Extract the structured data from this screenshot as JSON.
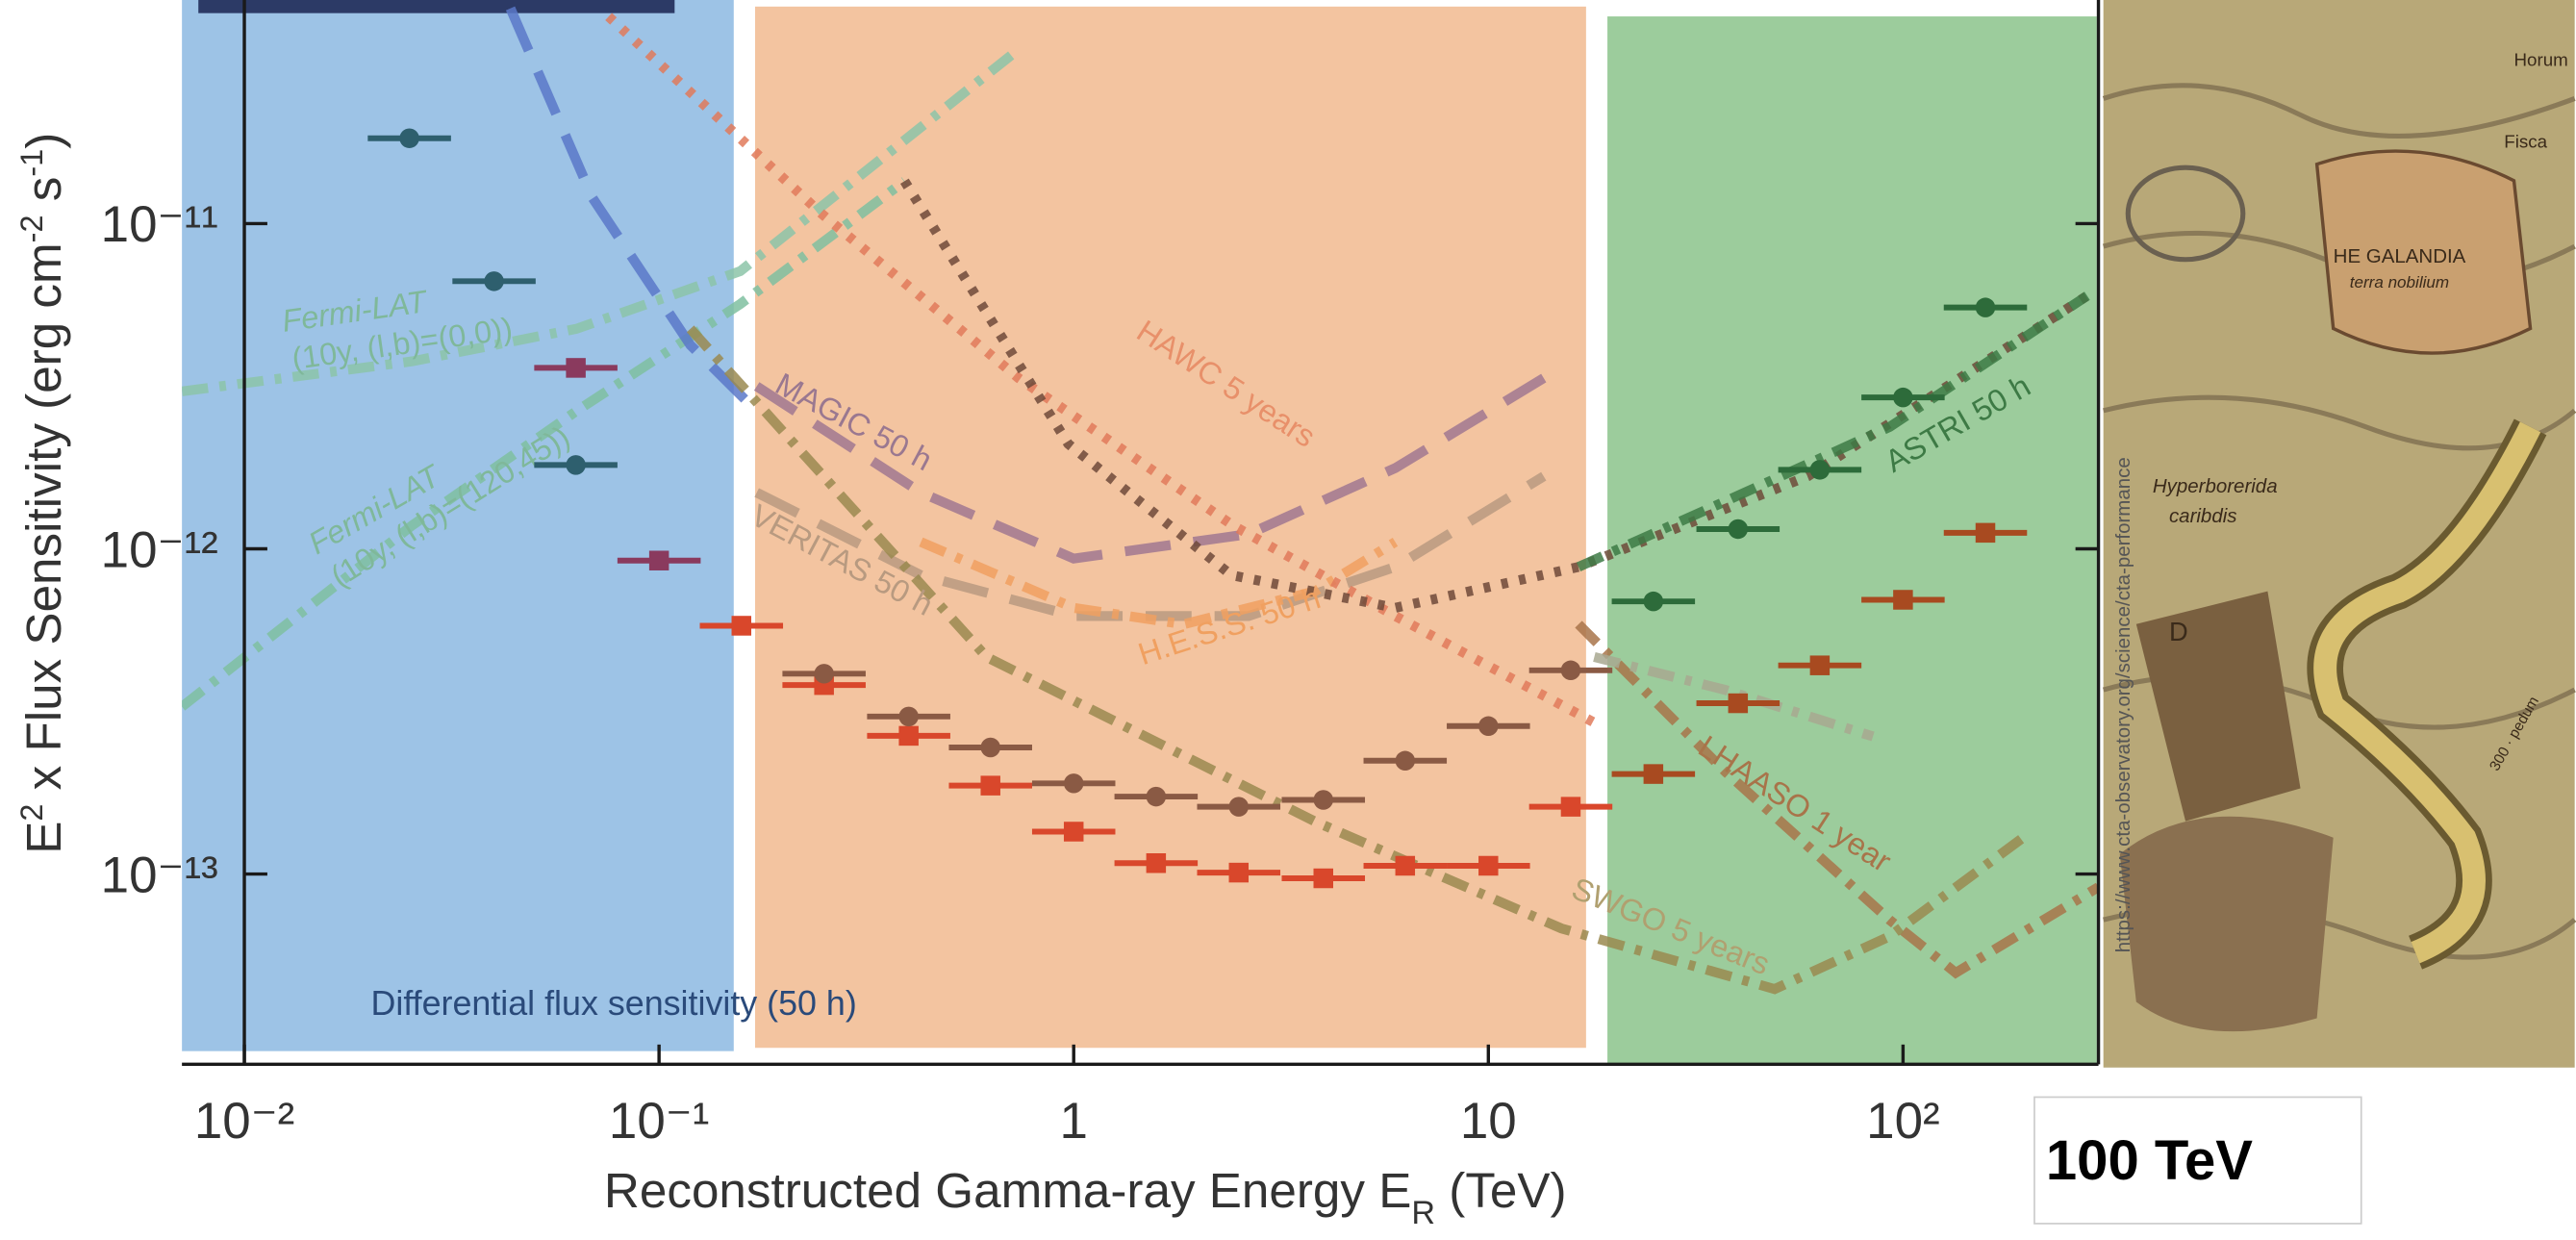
{
  "chart_data": {
    "type": "scatter",
    "log_x": true,
    "log_y": true,
    "xlim": [
      0.00707,
      296
    ],
    "ylim": [
      2.6e-14,
      4.87e-11
    ],
    "xticks": [
      {
        "value": 0.01,
        "label": "10⁻²"
      },
      {
        "value": 0.1,
        "label": "10⁻¹"
      },
      1,
      10,
      {
        "value": 100,
        "label": "10²"
      }
    ],
    "yticks": [
      {
        "value": 1e-13,
        "label": "10⁻¹³"
      },
      {
        "value": 1e-12,
        "label": "10⁻¹²"
      },
      {
        "value": 1e-11,
        "label": "10⁻¹¹"
      }
    ],
    "xlabel": [
      "Reconstructed Gamma-ray Energy E",
      "R",
      " (TeV)"
    ],
    "ylabel": [
      "E",
      "2",
      " x Flux Sensitivity (erg cm",
      "-2",
      " s",
      "-1",
      ")"
    ],
    "xerr_factor": 1.26,
    "series": [
      {
        "color": "#2e5f6e",
        "marker": "circle",
        "x": [
          0.025,
          0.04,
          0.063
        ],
        "values": [
          1.83e-11,
          6.65e-12,
          1.81e-12
        ]
      },
      {
        "color": "#8a3a5e",
        "marker": "square",
        "x": [
          0.063,
          0.1
        ],
        "values": [
          3.6e-12,
          9.2e-13
        ]
      },
      {
        "color": "#d9472b",
        "marker": "square",
        "x": [
          0.158,
          0.25,
          0.4,
          0.63,
          1,
          1.58,
          2.5,
          4,
          6.3,
          10,
          15.8
        ],
        "values": [
          5.8e-13,
          3.81e-13,
          2.66e-13,
          1.87e-13,
          1.35e-13,
          1.08e-13,
          1.01e-13,
          9.7e-14,
          1.06e-13,
          1.06e-13,
          1.61e-13
        ]
      },
      {
        "color": "#8a5a44",
        "marker": "circle",
        "x": [
          0.25,
          0.4,
          0.63,
          1,
          1.58,
          2.5,
          4,
          6.3,
          10,
          15.8
        ],
        "values": [
          4.13e-13,
          3.05e-13,
          2.45e-13,
          1.9e-13,
          1.73e-13,
          1.61e-13,
          1.69e-13,
          2.23e-13,
          2.85e-13,
          4.23e-13
        ]
      },
      {
        "color": "#a84a20",
        "marker": "square",
        "x": [
          25,
          40,
          63,
          100,
          158
        ],
        "values": [
          2.03e-13,
          3.35e-13,
          4.38e-13,
          6.97e-13,
          1.12e-12
        ]
      },
      {
        "color": "#2d6b3a",
        "marker": "circle",
        "x": [
          25,
          40,
          63,
          100,
          158
        ],
        "values": [
          6.89e-13,
          1.15e-12,
          1.75e-12,
          2.92e-12,
          5.52e-12
        ]
      }
    ],
    "curves": [
      {
        "color": "#8cc4a8",
        "style": "dashdot",
        "x": [
          0.00707,
          0.0254,
          0.0632,
          0.157,
          0.736
        ],
        "values": [
          3.05e-12,
          3.77e-12,
          4.75e-12,
          7.14e-12,
          3.43e-11
        ]
      },
      {
        "color": "#7fc0a0",
        "style": "dashdot",
        "x": [
          0.00707,
          0.0254,
          0.0632,
          0.157,
          0.391
        ],
        "values": [
          3.27e-13,
          1.18e-12,
          2.65e-12,
          5.66e-12,
          1.35e-11
        ]
      },
      {
        "color": "#5b78c8",
        "style": "dashed",
        "x": [
          0.0438,
          0.0691,
          0.119,
          0.172
        ],
        "values": [
          4.59e-11,
          1.2e-11,
          4.23e-12,
          2.65e-12
        ]
      },
      {
        "color": "#a07890",
        "style": "dashed",
        "x": [
          0.172,
          0.428,
          1,
          2.64,
          5.96,
          13.6
        ],
        "values": [
          3.16e-12,
          1.49e-12,
          9.33e-13,
          1.11e-12,
          1.77e-12,
          3.35e-12
        ]
      },
      {
        "color": "#b89a80",
        "style": "dashed",
        "x": [
          0.172,
          0.428,
          1,
          2.64,
          5.96,
          13.6
        ],
        "values": [
          1.49e-12,
          8.3e-13,
          6.21e-13,
          6.21e-13,
          8.79e-13,
          1.67e-12
        ]
      },
      {
        "color": "#f0a060",
        "style": "dashdot",
        "x": [
          0.428,
          1,
          1.84,
          3.82,
          5.96
        ],
        "values": [
          1.05e-12,
          6.58e-13,
          5.86e-13,
          7.4e-13,
          1.05e-12
        ]
      },
      {
        "color": "#e07a5a",
        "style": "dotted",
        "x": [
          0.0756,
          0.247,
          0.736,
          2.42,
          5.96,
          18
        ],
        "values": [
          4.33e-11,
          1.07e-11,
          3.35e-12,
          1.18e-12,
          6.21e-13,
          2.92e-13
        ]
      },
      {
        "color": "#6e4a3a",
        "style": "dotted",
        "x": [
          0.391,
          0.97,
          2.4,
          5.96,
          16.5,
          58.9,
          278
        ],
        "values": [
          1.35e-11,
          2.1e-12,
          8.3e-13,
          6.58e-13,
          8.79e-13,
          1.67e-12,
          6e-12
        ]
      },
      {
        "color": "#a8744a",
        "style": "dashdot",
        "x": [
          16.5,
          37.3,
          92.9,
          134,
          296
        ],
        "values": [
          5.86e-13,
          2.06e-13,
          7.22e-14,
          4.97e-14,
          9.12e-14
        ]
      },
      {
        "color": "#9a8a50",
        "style": "dashdot",
        "x": [
          0.119,
          0.616,
          3.82,
          15,
          49,
          92.9,
          194
        ],
        "values": [
          4.75e-12,
          4.65e-13,
          1.45e-13,
          6.8e-14,
          4.43e-14,
          6.43e-14,
          1.29e-13
        ]
      },
      {
        "color": "#3d7a45",
        "style": "dashdot",
        "x": [
          16.5,
          37.3,
          92.9,
          278
        ],
        "values": [
          8.79e-13,
          1.4e-12,
          2.37e-12,
          6e-12
        ]
      },
      {
        "color": "#a8a890",
        "style": "dashdot",
        "x": [
          18,
          37.3,
          84.6
        ],
        "values": [
          4.65e-13,
          3.68e-13,
          2.65e-13
        ]
      }
    ],
    "annotations": [
      "Fermi-LAT",
      "(10y, (l,b)=(0,0))",
      "Fermi-LAT",
      "(10y, (l,b)=(120,45))",
      "MAGIC 50 h",
      "VERITAS 50 h",
      "HAWC 5 years",
      "H.E.S.S. 50 h",
      "LHAASO 1 year",
      "SWGO 5 years",
      "ASTRI 50 h",
      "Differential flux sensitivity (50 h)"
    ]
  },
  "map_labels": [
    "HE GALANDIA",
    "terra nobilium",
    "Hyperborerida",
    "caribdis",
    "D",
    "Horum",
    "Fisca",
    "300 · pedum"
  ],
  "url": "https://www.cta-observatory.org/science/cta-performance",
  "badge": "100 TeV"
}
